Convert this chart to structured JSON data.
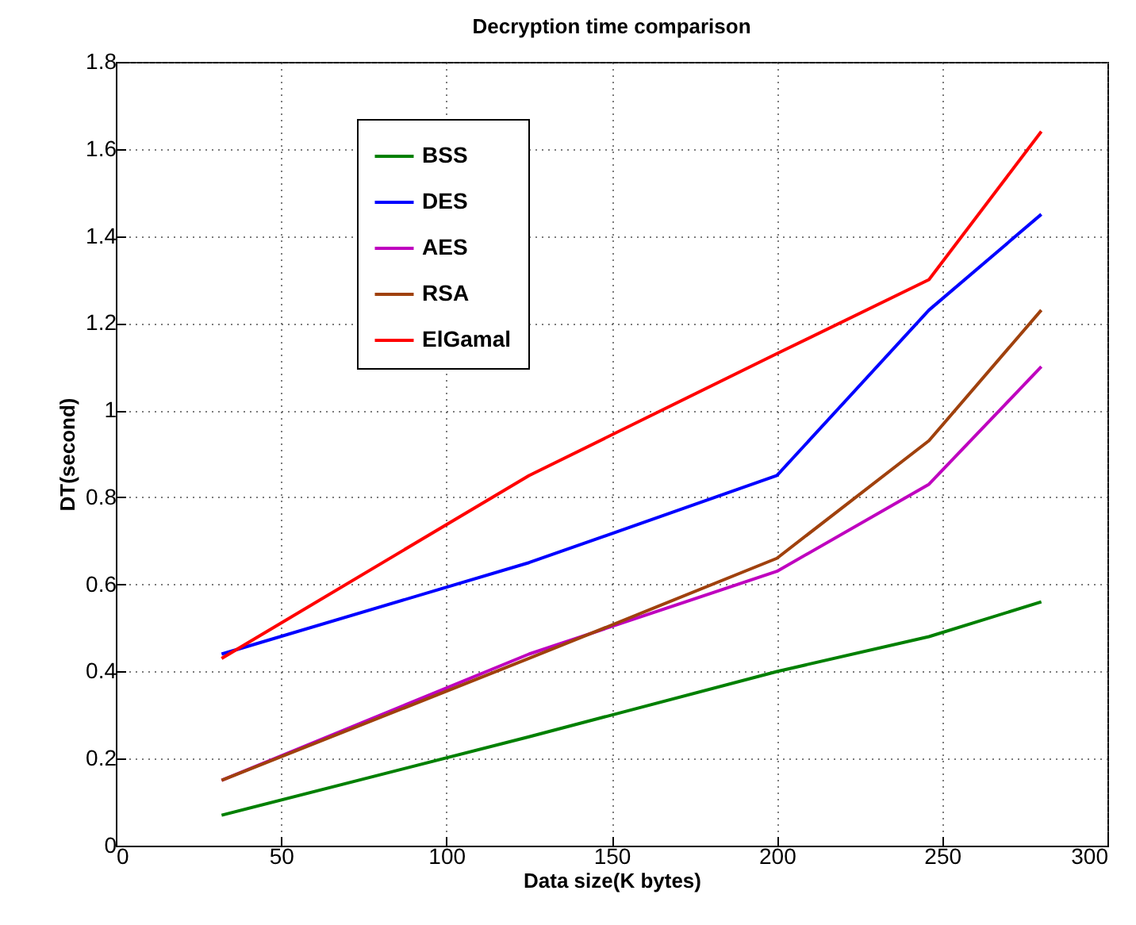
{
  "chart_data": {
    "type": "line",
    "title": "Decryption time comparison",
    "xlabel": "Data size(K bytes)",
    "ylabel": "DT(second)",
    "x": [
      32,
      125,
      200,
      246,
      280
    ],
    "series": [
      {
        "name": "BSS",
        "color": "#008000",
        "values": [
          0.07,
          0.25,
          0.4,
          0.48,
          0.56
        ]
      },
      {
        "name": "DES",
        "color": "#0000ff",
        "values": [
          0.44,
          0.65,
          0.85,
          1.23,
          1.45
        ]
      },
      {
        "name": "AES",
        "color": "#bf00bf",
        "values": [
          0.15,
          0.44,
          0.63,
          0.83,
          1.1
        ]
      },
      {
        "name": "RSA",
        "color": "#a0410d",
        "values": [
          0.15,
          0.43,
          0.66,
          0.93,
          1.23
        ]
      },
      {
        "name": "ElGamal",
        "color": "#ff0000",
        "values": [
          0.43,
          0.85,
          1.13,
          1.3,
          1.64
        ]
      }
    ],
    "xlim": [
      0,
      300
    ],
    "xticks": [
      0,
      50,
      100,
      150,
      200,
      250,
      300
    ],
    "ylim": [
      0,
      1.8
    ],
    "yticks": [
      0,
      0.2,
      0.4,
      0.6,
      0.8,
      1,
      1.2,
      1.4,
      1.6,
      1.8
    ],
    "grid": true,
    "legend": "top left",
    "marker": "none",
    "line_style": "solid"
  }
}
